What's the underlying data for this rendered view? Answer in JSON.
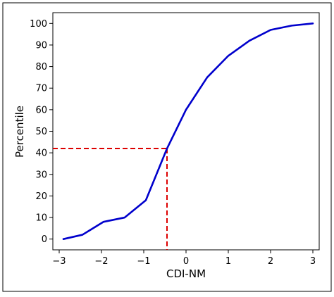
{
  "chart_data": {
    "type": "line",
    "title": "",
    "xlabel": "CDI-NM",
    "ylabel": "Percentile",
    "xlim": [
      -3.15,
      3.15
    ],
    "ylim": [
      -5,
      105
    ],
    "xticks": [
      -3,
      -2,
      -1,
      0,
      1,
      2,
      3
    ],
    "xtick_labels": [
      "−3",
      "−2",
      "−1",
      "0",
      "1",
      "2",
      "3"
    ],
    "yticks": [
      0,
      10,
      20,
      30,
      40,
      50,
      60,
      70,
      80,
      90,
      100
    ],
    "ytick_labels": [
      "0",
      "10",
      "20",
      "30",
      "40",
      "50",
      "60",
      "70",
      "80",
      "90",
      "100"
    ],
    "grid": false,
    "legend": false,
    "series": [
      {
        "color": "#0000cc",
        "x": [
          -2.9,
          -2.45,
          -1.95,
          -1.45,
          -0.95,
          -0.45,
          0.0,
          0.5,
          1.0,
          1.5,
          2.0,
          2.5,
          3.0
        ],
        "y": [
          0,
          2,
          8,
          10,
          18,
          42,
          60,
          75,
          85,
          92,
          97,
          99,
          100
        ]
      }
    ],
    "reference_lines": {
      "color": "#dd0000",
      "style": "dashed",
      "x": -0.45,
      "y": 42
    }
  }
}
